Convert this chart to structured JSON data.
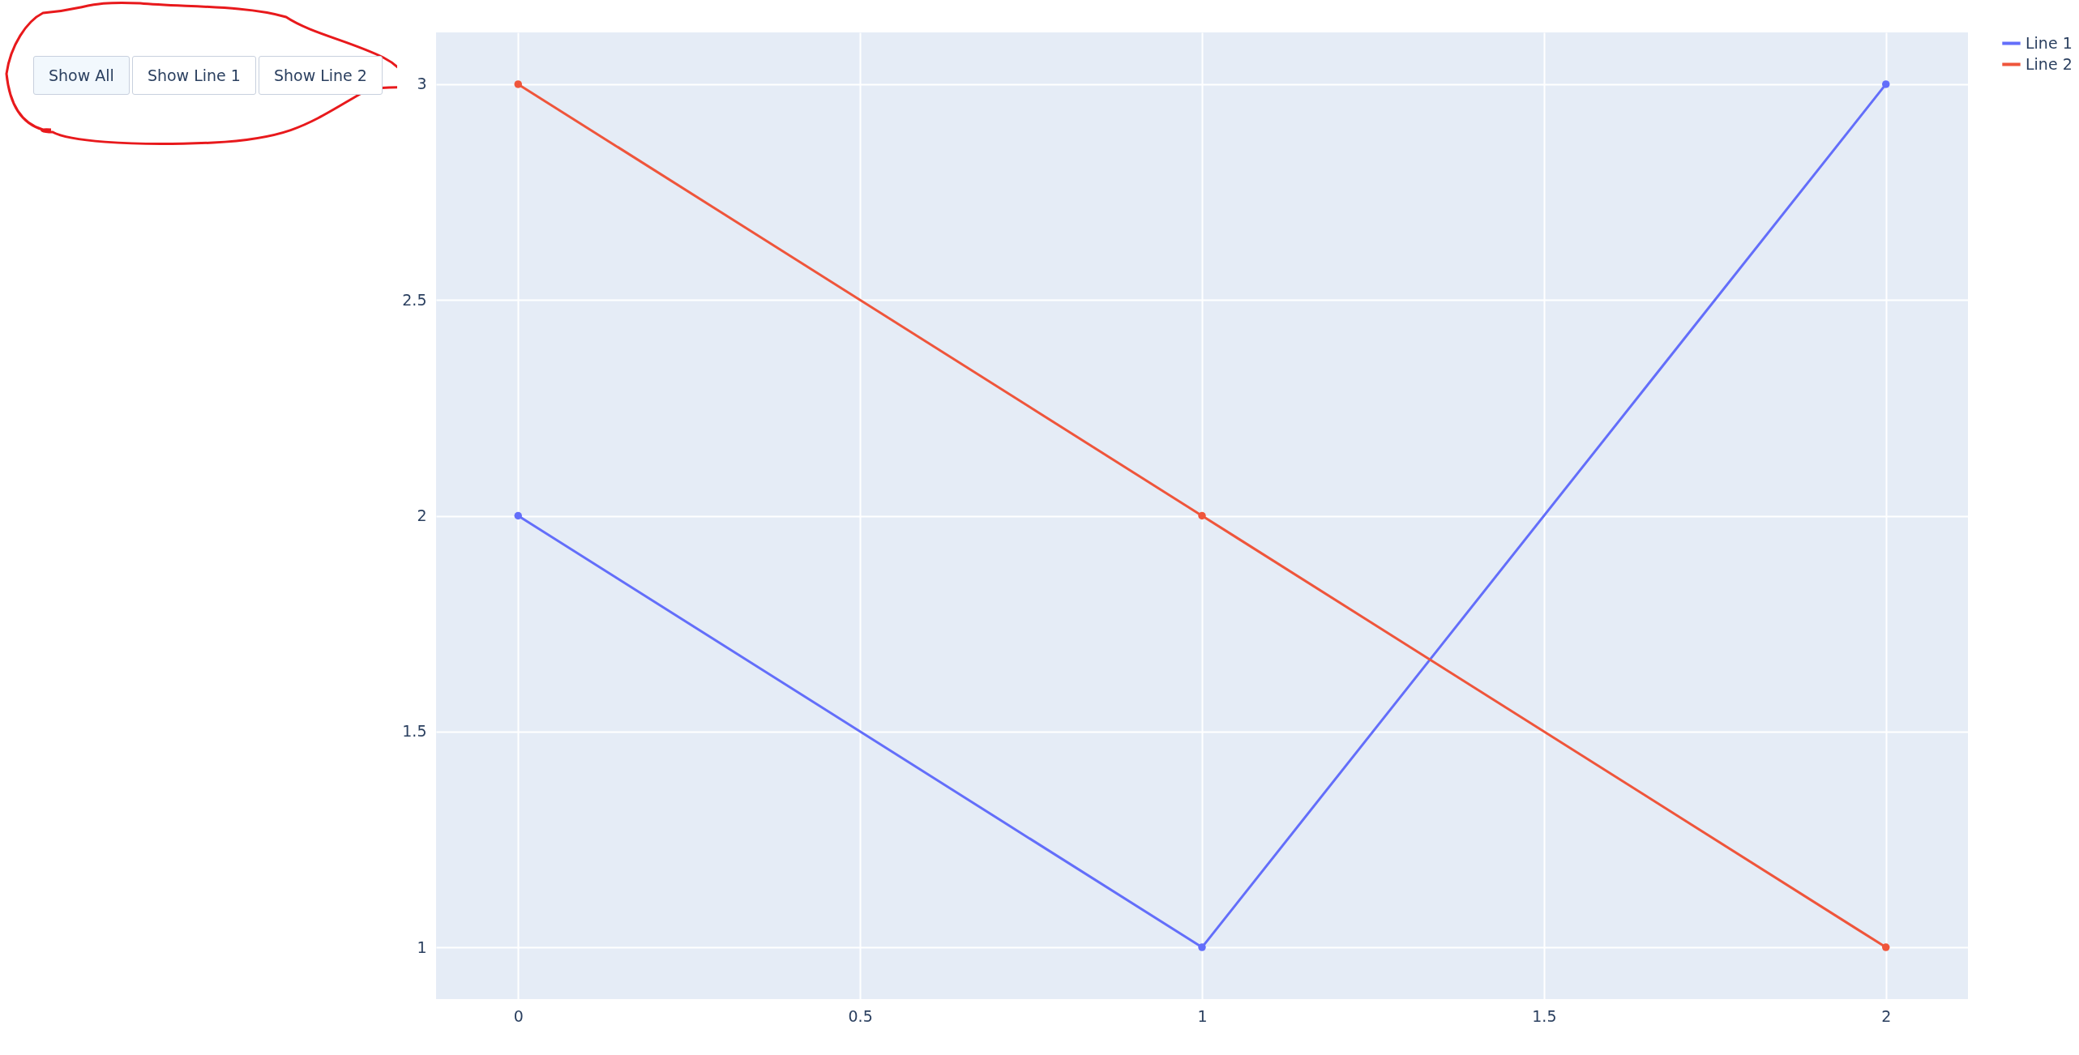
{
  "chart_data": {
    "type": "line",
    "x": [
      0,
      1,
      2
    ],
    "series": [
      {
        "name": "Line 1",
        "color": "#636efa",
        "values": [
          2,
          1,
          3
        ]
      },
      {
        "name": "Line 2",
        "color": "#ef553b",
        "values": [
          3,
          2,
          1
        ]
      }
    ],
    "xlim": [
      -0.12,
      2.12
    ],
    "xticks": [
      0,
      0.5,
      1,
      1.5,
      2
    ],
    "ylim": [
      0.88,
      3.12
    ],
    "yticks": [
      1,
      1.5,
      2,
      2.5,
      3
    ],
    "grid": true,
    "legend": "top right",
    "marker": "circle",
    "annotations": [
      "Show All",
      "Show Line 1",
      "Show Line 2"
    ]
  }
}
